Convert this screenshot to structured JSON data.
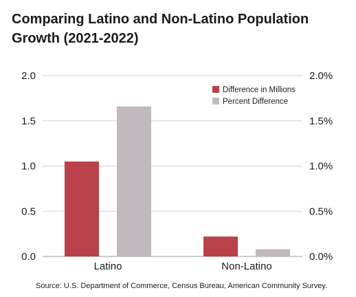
{
  "chart_data": {
    "type": "bar",
    "title": "Comparing Latino and Non-Latino Population Growth (2021-2022)",
    "categories": [
      "Latino",
      "Non-Latino"
    ],
    "series": [
      {
        "name": "Difference in Millions",
        "axis": "left",
        "values": [
          1.05,
          0.22
        ],
        "color": "#b9424a"
      },
      {
        "name": "Percent Difference",
        "axis": "right",
        "values": [
          1.66,
          0.08
        ],
        "color": "#c2b9bf"
      }
    ],
    "left_axis": {
      "ylim": [
        0,
        2.0
      ],
      "ticks": [
        "0.0",
        "0.5",
        "1.0",
        "1.5",
        "2.0"
      ]
    },
    "right_axis": {
      "ylim": [
        0,
        2.0
      ],
      "ticks": [
        "0.0%",
        "0.5%",
        "1.0%",
        "1.5%",
        "2.0%"
      ]
    },
    "grid": true,
    "legend_position": "top-right",
    "source": "Source: U.S. Department of Commerce, Census Bureau, American Community Survey."
  }
}
